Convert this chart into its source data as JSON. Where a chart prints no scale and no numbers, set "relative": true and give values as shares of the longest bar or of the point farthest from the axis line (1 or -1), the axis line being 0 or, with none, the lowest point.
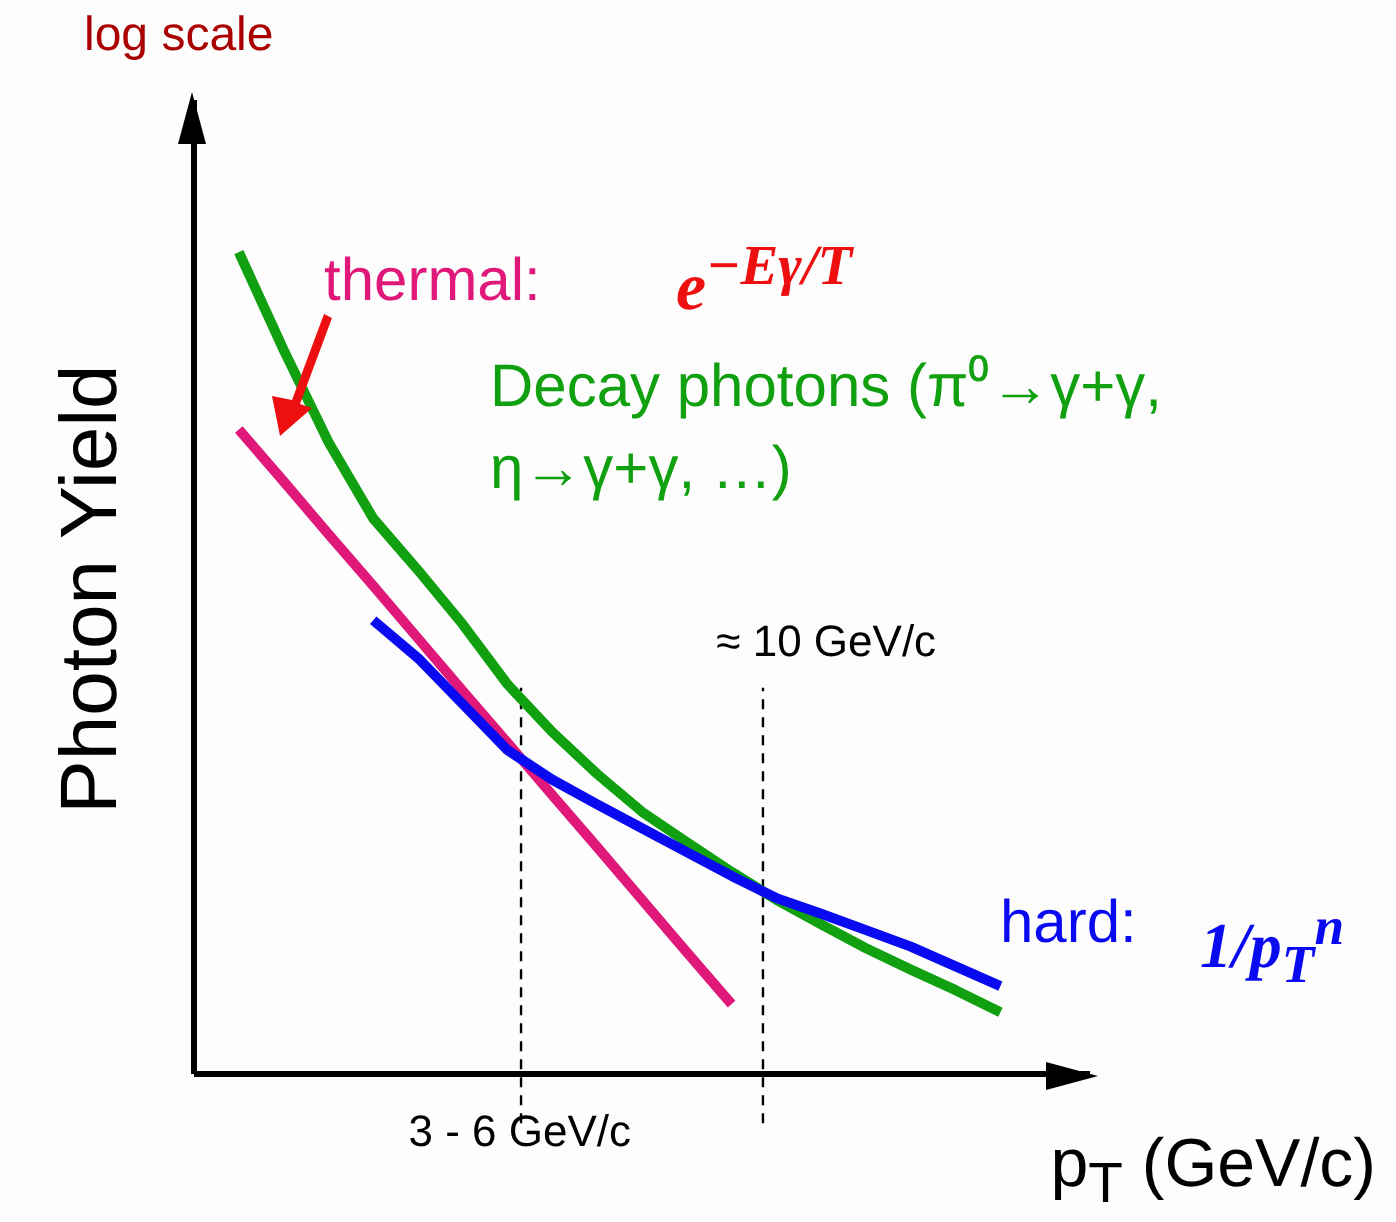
{
  "chart_data": {
    "type": "line",
    "relative": true,
    "xlabel": "p$_{T}$ (GeV/c)",
    "ylabel": "Photon Yield",
    "categories": [
      null,
      null,
      null,
      null,
      null,
      null,
      null,
      null,
      null,
      null,
      null,
      null,
      null,
      null,
      null,
      null,
      null,
      null,
      null,
      null,
      null
    ],
    "line_style": "solid",
    "series": [
      {
        "name": "thermal:",
        "color": "#e0187a",
        "values": [
          null,
          0.784,
          0.721,
          0.657,
          0.594,
          0.53,
          0.466,
          0.403,
          0.339,
          0.276,
          0.212,
          0.148,
          0.085,
          null,
          null,
          null,
          null,
          null,
          null,
          null,
          null
        ]
      },
      {
        "name": "Decay photons (π⁰→γ+γ, η→γ+γ, …)",
        "color": "#10a010",
        "values": [
          null,
          1.0,
          0.881,
          0.769,
          0.676,
          0.613,
          0.547,
          0.474,
          0.416,
          0.365,
          0.319,
          0.282,
          0.246,
          0.212,
          0.182,
          0.153,
          0.127,
          0.102,
          0.075,
          null,
          null
        ]
      },
      {
        "name": "hard:",
        "color": "#0a0af0",
        "values": [
          null,
          null,
          null,
          null,
          0.552,
          0.506,
          0.45,
          0.394,
          0.358,
          0.328,
          0.299,
          0.27,
          0.241,
          0.214,
          0.195,
          0.175,
          0.155,
          0.131,
          0.107,
          null,
          null
        ]
      }
    ],
    "annotations": [
      "log scale",
      "e$^{−Eγ/T}$",
      "1/p$_{T}$$^{n}$",
      "3 - 6 GeV/c",
      "≈ 10 GeV/c"
    ]
  }
}
